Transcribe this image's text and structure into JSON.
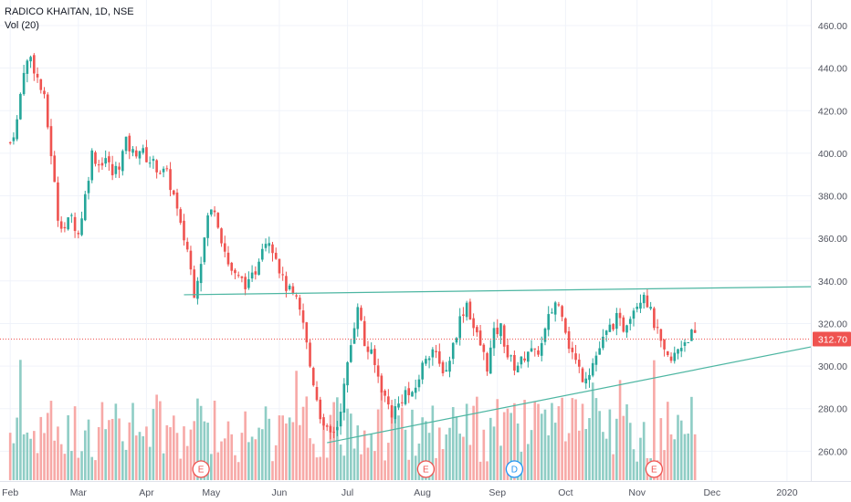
{
  "legend": {
    "symbol": "RADICO KHAITAN, 1D, NSE",
    "volume_label": "Vol (20)"
  },
  "colors": {
    "up": "#26a69a",
    "down": "#ef5350",
    "vol_up": "#8fcdc5",
    "vol_down": "#f7a9a7",
    "trendline": "#4db6a2",
    "price_line": "#ef5350",
    "grid": "#f0f3fa"
  },
  "chart_data": {
    "type": "candlestick",
    "y_axis": {
      "range": [
        246,
        472
      ],
      "ticks": [
        "460.00",
        "440.00",
        "420.00",
        "400.00",
        "380.00",
        "360.00",
        "340.00",
        "320.00",
        "300.00",
        "280.00",
        "260.00"
      ],
      "tick_values": [
        460,
        440,
        420,
        400,
        380,
        360,
        340,
        320,
        300,
        280,
        260
      ]
    },
    "x_axis": {
      "labels": [
        "Feb",
        "Mar",
        "Apr",
        "May",
        "Jun",
        "Jul",
        "Aug",
        "Sep",
        "Oct",
        "Nov",
        "Dec",
        "2020"
      ],
      "label_days": [
        0,
        20,
        40,
        59,
        79,
        99,
        121,
        143,
        163,
        184,
        206,
        228
      ],
      "day_range": [
        -3,
        235
      ]
    },
    "last_price": 312.7,
    "last_price_label": "312.70",
    "price_path": [
      [
        0,
        405
      ],
      [
        2,
        415
      ],
      [
        4,
        440
      ],
      [
        6,
        445
      ],
      [
        8,
        435
      ],
      [
        10,
        425
      ],
      [
        12,
        400
      ],
      [
        14,
        370
      ],
      [
        16,
        365
      ],
      [
        18,
        370
      ],
      [
        20,
        362
      ],
      [
        22,
        380
      ],
      [
        24,
        400
      ],
      [
        26,
        395
      ],
      [
        28,
        398
      ],
      [
        30,
        390
      ],
      [
        32,
        395
      ],
      [
        34,
        405
      ],
      [
        36,
        400
      ],
      [
        38,
        402
      ],
      [
        40,
        398
      ],
      [
        42,
        395
      ],
      [
        44,
        392
      ],
      [
        46,
        390
      ],
      [
        48,
        380
      ],
      [
        50,
        365
      ],
      [
        52,
        355
      ],
      [
        53,
        345
      ],
      [
        54,
        335
      ],
      [
        56,
        350
      ],
      [
        58,
        370
      ],
      [
        60,
        375
      ],
      [
        62,
        360
      ],
      [
        64,
        348
      ],
      [
        66,
        342
      ],
      [
        68,
        340
      ],
      [
        70,
        338
      ],
      [
        72,
        345
      ],
      [
        74,
        358
      ],
      [
        76,
        360
      ],
      [
        78,
        352
      ],
      [
        80,
        340
      ],
      [
        82,
        335
      ],
      [
        84,
        330
      ],
      [
        86,
        320
      ],
      [
        88,
        300
      ],
      [
        90,
        285
      ],
      [
        92,
        270
      ],
      [
        94,
        268
      ],
      [
        96,
        272
      ],
      [
        98,
        290
      ],
      [
        100,
        310
      ],
      [
        102,
        330
      ],
      [
        104,
        310
      ],
      [
        106,
        305
      ],
      [
        108,
        295
      ],
      [
        110,
        285
      ],
      [
        112,
        278
      ],
      [
        114,
        282
      ],
      [
        116,
        288
      ],
      [
        118,
        285
      ],
      [
        120,
        295
      ],
      [
        122,
        305
      ],
      [
        124,
        308
      ],
      [
        126,
        300
      ],
      [
        128,
        298
      ],
      [
        130,
        310
      ],
      [
        132,
        322
      ],
      [
        134,
        330
      ],
      [
        136,
        318
      ],
      [
        138,
        310
      ],
      [
        140,
        300
      ],
      [
        142,
        315
      ],
      [
        144,
        318
      ],
      [
        146,
        305
      ],
      [
        148,
        300
      ],
      [
        150,
        302
      ],
      [
        152,
        308
      ],
      [
        154,
        305
      ],
      [
        156,
        310
      ],
      [
        158,
        322
      ],
      [
        160,
        330
      ],
      [
        162,
        326
      ],
      [
        164,
        310
      ],
      [
        166,
        302
      ],
      [
        168,
        295
      ],
      [
        170,
        298
      ],
      [
        172,
        305
      ],
      [
        174,
        312
      ],
      [
        176,
        318
      ],
      [
        178,
        322
      ],
      [
        180,
        318
      ],
      [
        182,
        325
      ],
      [
        184,
        330
      ],
      [
        186,
        335
      ],
      [
        188,
        325
      ],
      [
        190,
        315
      ],
      [
        192,
        305
      ],
      [
        194,
        302
      ],
      [
        196,
        308
      ],
      [
        198,
        312
      ],
      [
        200,
        315
      ],
      [
        201,
        313
      ]
    ],
    "candles": {
      "day_start": 0,
      "day_end": 201,
      "seed": 7
    },
    "volume": {
      "max_height_ratio": 0.25
    },
    "trendlines": [
      {
        "name": "resistance",
        "from": [
          51,
          333.5
        ],
        "to": [
          235,
          337.3
        ]
      },
      {
        "name": "support",
        "from": [
          93,
          264
        ],
        "to": [
          235,
          309
        ]
      }
    ],
    "earnings_markers": [
      {
        "day": 56,
        "label": "E",
        "kind": "earnings"
      },
      {
        "day": 122,
        "label": "E",
        "kind": "earnings"
      },
      {
        "day": 148,
        "label": "D",
        "kind": "dividend"
      },
      {
        "day": 189,
        "label": "E",
        "kind": "earnings"
      }
    ]
  }
}
